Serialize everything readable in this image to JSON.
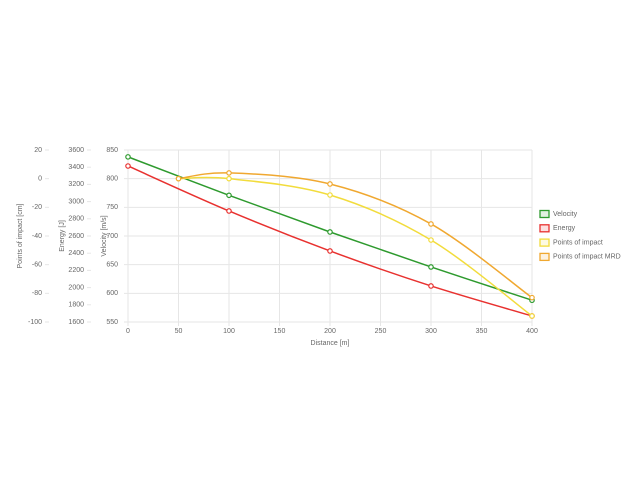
{
  "chart_data": {
    "type": "line",
    "xlabel": "Distance [m]",
    "ylabel": "Velocity [m/s]",
    "y2label": "Energy [J]",
    "y3label": "Points of impact [cm]",
    "xlim": [
      0,
      400
    ],
    "xticks": [
      0,
      50,
      100,
      150,
      200,
      250,
      300,
      350,
      400
    ],
    "ylim": [
      550,
      850
    ],
    "yticks": [
      550,
      600,
      650,
      700,
      750,
      800,
      850
    ],
    "y2lim": [
      1600,
      3600
    ],
    "y2ticks": [
      1600,
      1800,
      2000,
      2200,
      2400,
      2600,
      2800,
      3000,
      3200,
      3400,
      3600
    ],
    "y3lim": [
      -100,
      20
    ],
    "y3ticks": [
      -100,
      -80,
      -60,
      -40,
      -20,
      0,
      20
    ],
    "grid": true,
    "legend": "right",
    "series": [
      {
        "name": "Velocity",
        "color": "#2e9a2e",
        "axis": "y",
        "x": [
          0,
          100,
          200,
          300,
          400
        ],
        "values": [
          838,
          771,
          707,
          646,
          588
        ]
      },
      {
        "name": "Energy",
        "color": "#e8312f",
        "axis": "y2",
        "x": [
          0,
          100,
          200,
          300,
          400
        ],
        "values": [
          3414,
          2891,
          2426,
          2019,
          1670
        ]
      },
      {
        "name": "Points of impact",
        "color": "#f2dc3c",
        "axis": "y3",
        "x": [
          50,
          100,
          200,
          300,
          400
        ],
        "values": [
          0,
          0,
          -11.4,
          -42.8,
          -95.8
        ]
      },
      {
        "name": "Points of impact MRD",
        "color": "#f0a830",
        "axis": "y3",
        "x": [
          50,
          100,
          200,
          300,
          400
        ],
        "values": [
          0,
          4,
          -3.7,
          -31.6,
          -83
        ]
      }
    ]
  }
}
